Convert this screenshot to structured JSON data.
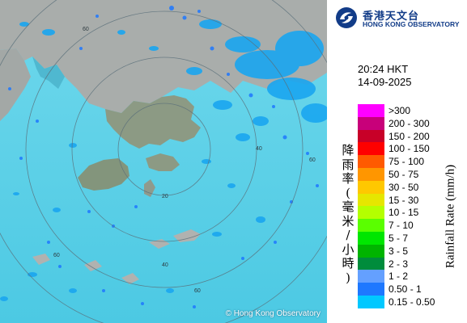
{
  "map": {
    "copyright": "© Hong Kong Observatory",
    "sea_color": "#5bd2e8",
    "land_color": "#9aa0a0",
    "range_ring_labels": [
      "60",
      "60",
      "40",
      "20",
      "60",
      "40",
      "60"
    ]
  },
  "header": {
    "logo_zh": "香港天文台",
    "logo_en": "HONG KONG OBSERVATORY",
    "time": "20:24 HKT",
    "date": "14-09-2025"
  },
  "legend": {
    "title_zh": [
      "降",
      "雨",
      "率",
      "(",
      "毫",
      "米",
      "/",
      "小",
      "時",
      ")"
    ],
    "title_en": "Rainfall Rate (mm/h)",
    "items": [
      {
        "label": ">300",
        "color": "#ff00ff"
      },
      {
        "label": "200 - 300",
        "color": "#c8007a"
      },
      {
        "label": "150 - 200",
        "color": "#c80028"
      },
      {
        "label": "100 - 150",
        "color": "#ff0000"
      },
      {
        "label": "75 - 100",
        "color": "#ff5a00"
      },
      {
        "label": "50 - 75",
        "color": "#ff9600"
      },
      {
        "label": "30 - 50",
        "color": "#ffc800"
      },
      {
        "label": "15 - 30",
        "color": "#e6e600"
      },
      {
        "label": "10 - 15",
        "color": "#b4ff00"
      },
      {
        "label": "7 - 10",
        "color": "#5aff00"
      },
      {
        "label": "5 - 7",
        "color": "#00e600"
      },
      {
        "label": "3 - 5",
        "color": "#00b400"
      },
      {
        "label": "2 - 3",
        "color": "#008c3c"
      },
      {
        "label": "1 - 2",
        "color": "#64a0ff"
      },
      {
        "label": "0.50 - 1",
        "color": "#1e78ff"
      },
      {
        "label": "0.15 - 0.50",
        "color": "#00c8ff"
      }
    ]
  }
}
